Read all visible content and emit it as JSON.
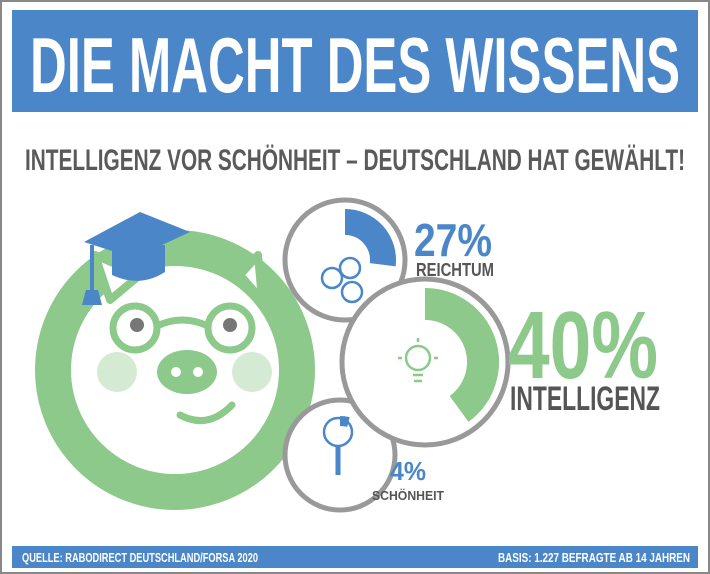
{
  "chart_data": {
    "type": "radial",
    "title": "DIE MACHT DES WISSENS",
    "subtitle": "INTELLIGENZ VOR SCHÖNHEIT – DEUTSCHLAND HAT GEWÄHLT!",
    "categories": [
      "REICHTUM",
      "INTELLIGENZ",
      "SCHÖNHEIT"
    ],
    "values": [
      27,
      40,
      4
    ],
    "value_labels": [
      "27%",
      "40%",
      "4%"
    ],
    "colors": [
      "#4a86c8",
      "#8cc98a",
      "#4a86c8"
    ],
    "source": "QUELLE: RABODIRECT DEUTSCHLAND/FORSA 2020",
    "basis": "BASIS: 1.227 BEFRAGTE AB 14 JAHREN"
  }
}
